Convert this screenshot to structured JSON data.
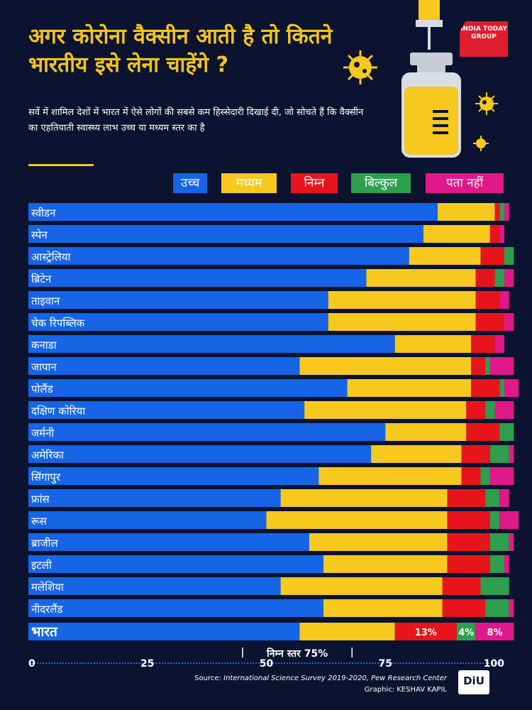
{
  "header": {
    "title": "अगर कोरोना वैक्सीन आती है तो कितने भारतीय इसे लेना चाहेंगे ?",
    "subtitle": "सर्वे में शामिल देशों में भारत में ऐसे लोगों की सबसे कम हिस्सेदारी दिखाई दी, जो सोचते हैं कि वैक्सीन का एहतियाती स्वास्थ्य लाभ उच्च या मध्यम स्तर का है",
    "brand_logo": "INDIA TODAY GROUP"
  },
  "colors": {
    "background": "#0b1330",
    "title": "#f5c518",
    "high": "#1565e6",
    "medium": "#f7c81e",
    "low": "#e8141c",
    "none": "#2e9e4f",
    "dont_know": "#e0188a"
  },
  "icons": {
    "illustration": "vaccine-vial-syringe-icon",
    "virus": "coronavirus-icon"
  },
  "chart_data": {
    "type": "bar",
    "orientation": "horizontal",
    "stacked": true,
    "legend_position": "top",
    "xlim": [
      0,
      100
    ],
    "x_ticks": [
      "0",
      "25",
      "50",
      "75",
      "100"
    ],
    "categories": [
      "स्वीडन",
      "स्पेन",
      "आस्ट्रेलिया",
      "ब्रिटेन",
      "ताइवान",
      "चेक रिपब्लिक",
      "कनाडा",
      "जापान",
      "पोलैंड",
      "दक्षिण कोरिया",
      "जर्मनी",
      "अमेरिका",
      "सिंगापुर",
      "फ्रांस",
      "रूस",
      "ब्राजील",
      "इटली",
      "मलेशिया",
      "नीदरलैंड",
      "भारत"
    ],
    "series": [
      {
        "name": "उच्च",
        "color": "#1565e6",
        "values": [
          86,
          83,
          80,
          71,
          63,
          63,
          77,
          57,
          67,
          58,
          75,
          72,
          61,
          53,
          50,
          59,
          62,
          53,
          62,
          57
        ]
      },
      {
        "name": "मध्यम",
        "color": "#f7c81e",
        "values": [
          12,
          14,
          15,
          23,
          31,
          31,
          16,
          36,
          26,
          34,
          17,
          19,
          30,
          35,
          38,
          29,
          26,
          34,
          25,
          20
        ]
      },
      {
        "name": "निम्न",
        "color": "#e8141c",
        "values": [
          1,
          2,
          5,
          4,
          5,
          6,
          5,
          3,
          6,
          4,
          7,
          6,
          4,
          8,
          9,
          9,
          9,
          8,
          9,
          13
        ]
      },
      {
        "name": "बिल्कुल",
        "color": "#2e9e4f",
        "values": [
          1,
          0,
          2,
          2,
          0,
          0,
          0,
          1,
          1,
          2,
          3,
          4,
          2,
          3,
          2,
          4,
          3,
          6,
          5,
          4
        ]
      },
      {
        "name": "पता नहीं",
        "color": "#e0188a",
        "values": [
          1,
          1,
          0,
          2,
          2,
          2,
          2,
          5,
          3,
          4,
          0,
          1,
          5,
          2,
          4,
          1,
          1,
          0,
          1,
          8
        ]
      }
    ],
    "data_labels": {
      "भारत": [
        "",
        "",
        "13%",
        "4%",
        "8%"
      ]
    },
    "annotation": "निम्न स्तर 75%"
  },
  "footer": {
    "source_prefix": "Source: ",
    "source_text": "International Science Survey 2019-2020, Pew Research Center",
    "credit": "Graphic: KESHAV KAPIL",
    "diu_logo": "DiU"
  }
}
